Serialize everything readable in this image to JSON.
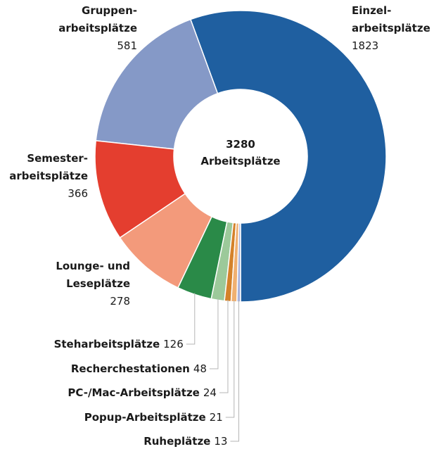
{
  "chart_data": {
    "type": "donut",
    "total": 3280,
    "center_label": "Arbeitsplätze",
    "series": [
      {
        "name": "Einzel-\narbeitsplätze",
        "color": "#1f5fa0",
        "value": 1823
      },
      {
        "name": "Gruppen-\narbeitsplätze",
        "color": "#8599c7",
        "value": 581
      },
      {
        "name": "Semester-\narbeitsplätze",
        "color": "#e43e2f",
        "value": 366
      },
      {
        "name": "Lounge- und\nLeseplätze",
        "color": "#f39a7b",
        "value": 278
      },
      {
        "name": "Steharbeitsplätze",
        "color": "#2a8a48",
        "value": 126
      },
      {
        "name": "Recherchestationen",
        "color": "#9cc99a",
        "value": 48
      },
      {
        "name": "PC-/Mac-Arbeitsplätze",
        "color": "#d4822a",
        "value": 24
      },
      {
        "name": "Popup-Arbeitsplätze",
        "color": "#f0b070",
        "value": 21
      },
      {
        "name": "Ruheplätze",
        "color": "#a9b3dc",
        "value": 13
      }
    ]
  }
}
